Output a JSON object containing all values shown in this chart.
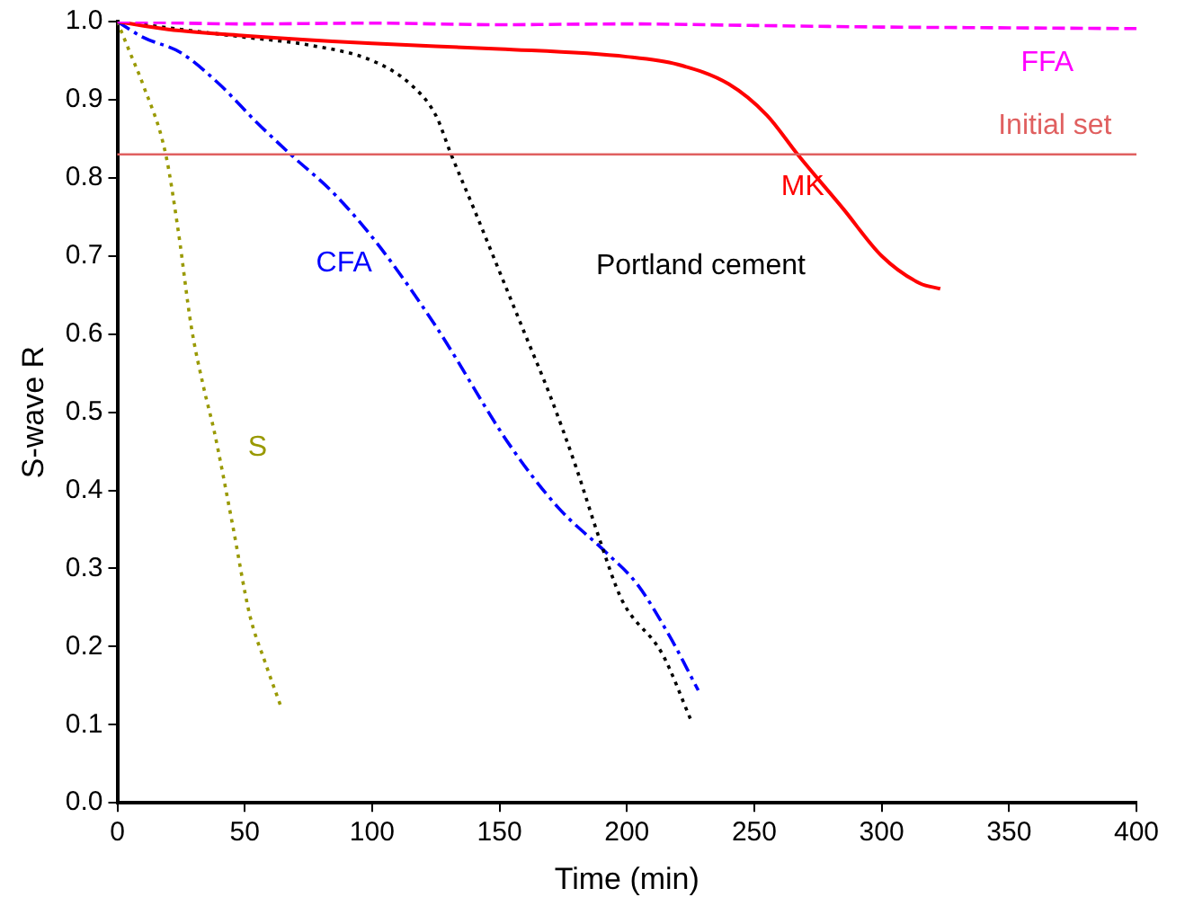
{
  "chart_data": {
    "type": "line",
    "xlabel": "Time (min)",
    "ylabel": "S-wave R",
    "xlim": [
      0,
      400
    ],
    "xticks": [
      0,
      50,
      100,
      150,
      200,
      250,
      300,
      350,
      400
    ],
    "ylim": [
      0,
      1
    ],
    "yticks": [
      {
        "value": 0,
        "label": "0.0"
      },
      0.1,
      0.2,
      0.3,
      0.4,
      0.5,
      0.6,
      0.7,
      0.8,
      0.9,
      {
        "value": 1,
        "label": "1.0"
      }
    ],
    "grid": false,
    "legend": false,
    "marker": "none",
    "series": [
      {
        "name": "FFA",
        "color": "#ff00ff",
        "line_style": "dashed",
        "x": [
          0,
          50,
          100,
          150,
          200,
          250,
          300,
          350,
          400
        ],
        "values": [
          1,
          0.997,
          0.998,
          0.996,
          0.997,
          0.995,
          0.993,
          0.992,
          0.991
        ]
      },
      {
        "name": "MK",
        "color": "#ff0000",
        "line_style": "solid",
        "x": [
          0,
          20,
          50,
          100,
          150,
          200,
          220,
          240,
          255,
          267,
          285,
          300,
          315,
          323
        ],
        "values": [
          1,
          0.99,
          0.982,
          0.972,
          0.965,
          0.955,
          0.945,
          0.92,
          0.88,
          0.83,
          0.76,
          0.7,
          0.665,
          0.658
        ]
      },
      {
        "name": "Portland cement",
        "color": "#000000",
        "line_style": "dotted",
        "x": [
          0,
          25,
          50,
          75,
          100,
          115,
          125,
          131,
          140,
          150,
          160,
          170,
          180,
          189,
          198,
          214,
          225
        ],
        "values": [
          1,
          0.99,
          0.98,
          0.97,
          0.95,
          0.92,
          0.88,
          0.83,
          0.76,
          0.68,
          0.6,
          0.52,
          0.43,
          0.34,
          0.26,
          0.19,
          0.107
        ]
      },
      {
        "name": "CFA",
        "color": "#0000ff",
        "line_style": "dashed",
        "x": [
          0,
          10,
          25,
          40,
          55,
          68,
          85,
          102,
          125,
          154,
          173,
          192,
          204,
          217,
          228
        ],
        "values": [
          1,
          0.98,
          0.96,
          0.92,
          0.87,
          0.83,
          0.78,
          0.716,
          0.61,
          0.458,
          0.378,
          0.32,
          0.28,
          0.212,
          0.144
        ]
      },
      {
        "name": "S",
        "color": "#999900",
        "line_style": "dotted",
        "x": [
          0,
          5,
          10,
          19,
          24,
          29,
          34,
          38,
          45,
          52,
          58,
          64
        ],
        "values": [
          1,
          0.96,
          0.92,
          0.83,
          0.73,
          0.61,
          0.53,
          0.476,
          0.36,
          0.24,
          0.18,
          0.125
        ]
      }
    ],
    "ref_lines": [
      {
        "axis": "y",
        "value": 0.83,
        "label": "Initial set",
        "color": "#e06060"
      }
    ]
  }
}
